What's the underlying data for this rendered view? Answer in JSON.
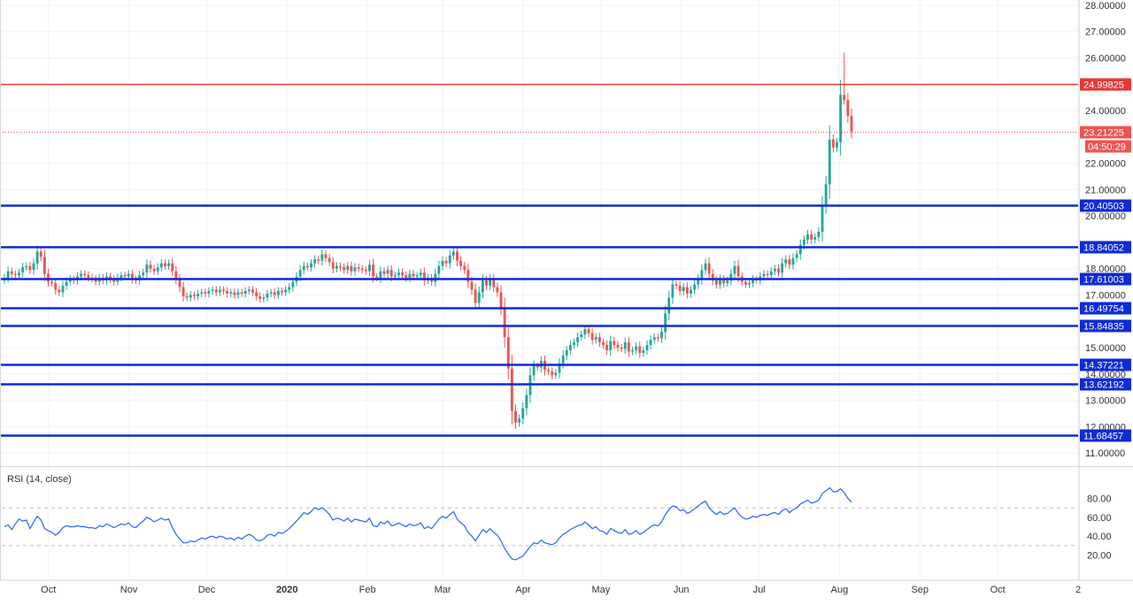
{
  "chart_data": [
    {
      "type": "candlestick",
      "indicator_title": "",
      "y_axis": {
        "range": [
          10.5,
          28.2
        ],
        "tick_labels": [
          "11.00000",
          "12.00000",
          "13.00000",
          "14.00000",
          "15.00000",
          "17.00000",
          "18.00000",
          "20.00000",
          "21.00000",
          "22.00000",
          "24.00000",
          "26.00000",
          "27.00000",
          "28.00000"
        ],
        "ticks": [
          11,
          12,
          13,
          14,
          15,
          17,
          18,
          20,
          21,
          22,
          24,
          26,
          27,
          28
        ]
      },
      "x_axis": {
        "tick_labels": [
          "Oct",
          "Nov",
          "Dec",
          "2020",
          "Feb",
          "Mar",
          "Apr",
          "May",
          "Jun",
          "Jul",
          "Aug",
          "Sep",
          "Oct",
          "2"
        ],
        "tick_dates": [
          "2019-10-01",
          "2019-11-01",
          "2019-12-01",
          "2020-01-01",
          "2020-02-01",
          "2020-03-01",
          "2020-04-01",
          "2020-05-01",
          "2020-06-01",
          "2020-07-01",
          "2020-08-01",
          "2020-09-01",
          "2020-10-01",
          "2020-11-01"
        ],
        "range": [
          "2019-09-13",
          "2020-11-01"
        ]
      },
      "horizontal_lines": [
        {
          "value": 24.99825,
          "label": "24.99825",
          "color": "#e53935",
          "style": "solid"
        },
        {
          "value": 20.40503,
          "label": "20.40503",
          "color": "#0d2bd6",
          "style": "solid"
        },
        {
          "value": 18.84052,
          "label": "18.84052",
          "color": "#0d2bd6",
          "style": "solid"
        },
        {
          "value": 17.61003,
          "label": "17.61003",
          "color": "#0d2bd6",
          "style": "solid"
        },
        {
          "value": 16.49754,
          "label": "16.49754",
          "color": "#0d2bd6",
          "style": "solid"
        },
        {
          "value": 15.84835,
          "label": "15.84835",
          "color": "#0d2bd6",
          "style": "solid"
        },
        {
          "value": 14.37221,
          "label": "14.37221",
          "color": "#0d2bd6",
          "style": "solid"
        },
        {
          "value": 13.62192,
          "label": "13.62192",
          "color": "#0d2bd6",
          "style": "solid"
        },
        {
          "value": 11.68457,
          "label": "11.68457",
          "color": "#0d2bd6",
          "style": "solid"
        }
      ],
      "last_price": {
        "value": 23.21225,
        "label": "23.21225",
        "countdown": "04:50:29",
        "color": "#ef5350"
      },
      "colors": {
        "up": "#26a69a",
        "down": "#ef5350"
      },
      "closes": [
        17.65,
        17.9,
        17.8,
        17.75,
        17.85,
        18.05,
        18.1,
        17.95,
        18.2,
        18.65,
        18.45,
        17.8,
        17.5,
        17.45,
        17.2,
        17.1,
        17.35,
        17.5,
        17.6,
        17.55,
        17.7,
        17.8,
        17.75,
        17.65,
        17.6,
        17.5,
        17.65,
        17.55,
        17.7,
        17.6,
        17.5,
        17.65,
        17.75,
        17.7,
        17.8,
        17.6,
        17.55,
        17.75,
        17.85,
        18.15,
        18.0,
        17.9,
        18.05,
        18.2,
        18.1,
        18.2,
        17.9,
        17.6,
        17.3,
        16.95,
        16.9,
        17.0,
        16.95,
        17.05,
        17.1,
        17.05,
        17.15,
        17.2,
        17.1,
        17.2,
        17.15,
        17.05,
        17.1,
        17.0,
        17.1,
        17.05,
        17.15,
        17.2,
        17.1,
        16.95,
        16.85,
        16.9,
        17.05,
        17.1,
        17.0,
        17.15,
        17.1,
        17.2,
        17.3,
        17.5,
        17.7,
        17.95,
        18.1,
        18.05,
        18.2,
        18.35,
        18.3,
        18.55,
        18.4,
        18.25,
        18.0,
        18.1,
        18.05,
        17.95,
        18.1,
        17.9,
        18.05,
        18.0,
        17.95,
        17.9,
        18.15,
        17.7,
        17.65,
        17.9,
        17.8,
        17.95,
        17.7,
        17.75,
        17.85,
        17.75,
        17.65,
        17.8,
        17.7,
        17.75,
        17.85,
        17.55,
        17.65,
        17.5,
        17.8,
        18.1,
        18.3,
        18.2,
        18.5,
        18.65,
        18.3,
        18.1,
        17.95,
        17.5,
        17.2,
        16.7,
        17.1,
        17.55,
        17.35,
        17.6,
        17.3,
        17.1,
        16.5,
        15.4,
        14.2,
        12.6,
        12.15,
        12.3,
        12.7,
        13.2,
        13.95,
        14.3,
        14.25,
        14.5,
        14.15,
        14.1,
        13.95,
        14.05,
        14.4,
        14.7,
        14.9,
        15.1,
        15.2,
        15.4,
        15.5,
        15.7,
        15.55,
        15.3,
        15.4,
        15.2,
        15.1,
        14.9,
        15.25,
        15.1,
        15.0,
        14.95,
        15.2,
        14.85,
        14.9,
        15.05,
        14.8,
        14.9,
        15.1,
        15.3,
        15.4,
        15.35,
        15.6,
        16.3,
        16.9,
        17.4,
        17.35,
        17.15,
        17.3,
        17.05,
        17.2,
        17.4,
        17.6,
        17.95,
        18.2,
        17.8,
        17.55,
        17.4,
        17.6,
        17.45,
        17.55,
        17.8,
        18.1,
        17.7,
        17.5,
        17.4,
        17.45,
        17.6,
        17.55,
        17.7,
        17.8,
        17.75,
        17.9,
        18.0,
        17.85,
        18.2,
        18.35,
        18.15,
        18.4,
        18.55,
        18.9,
        19.1,
        19.3,
        19.1,
        19.2,
        19.4,
        20.4,
        21.2,
        22.9,
        22.6,
        22.8,
        24.6,
        24.4,
        23.8,
        23.21
      ],
      "rsi": {
        "title": "RSI (14, close)",
        "range": [
          0,
          100
        ],
        "bands": [
          70,
          30
        ],
        "tick_labels": [
          "80.00",
          "60.00",
          "40.00",
          "20.00"
        ],
        "ticks": [
          80,
          60,
          40,
          20
        ],
        "color": "#2962ff",
        "values": [
          50,
          52,
          47,
          53,
          58,
          56,
          57,
          48,
          55,
          61,
          57,
          48,
          46,
          44,
          41,
          44,
          49,
          51,
          50,
          50,
          51,
          50,
          50,
          49,
          49,
          48,
          51,
          50,
          53,
          51,
          49,
          51,
          53,
          52,
          54,
          50,
          49,
          53,
          56,
          60,
          58,
          55,
          57,
          59,
          57,
          58,
          49,
          42,
          37,
          33,
          33,
          35,
          34,
          36,
          38,
          37,
          39,
          40,
          38,
          40,
          39,
          37,
          38,
          36,
          39,
          37,
          40,
          42,
          40,
          36,
          35,
          37,
          41,
          42,
          40,
          44,
          43,
          45,
          48,
          52,
          56,
          60,
          65,
          63,
          66,
          70,
          68,
          70,
          67,
          63,
          57,
          59,
          58,
          56,
          59,
          55,
          58,
          57,
          56,
          55,
          59,
          51,
          50,
          55,
          53,
          56,
          51,
          52,
          54,
          52,
          50,
          53,
          51,
          52,
          54,
          48,
          50,
          48,
          53,
          58,
          61,
          59,
          63,
          66,
          58,
          54,
          51,
          44,
          40,
          35,
          41,
          47,
          44,
          48,
          44,
          41,
          35,
          27,
          21,
          16,
          15,
          17,
          19,
          24,
          29,
          33,
          32,
          36,
          33,
          32,
          31,
          33,
          38,
          42,
          44,
          47,
          49,
          51,
          52,
          55,
          52,
          48,
          50,
          46,
          45,
          42,
          48,
          46,
          44,
          43,
          47,
          42,
          43,
          46,
          42,
          44,
          47,
          50,
          52,
          51,
          55,
          63,
          68,
          72,
          71,
          67,
          68,
          64,
          66,
          69,
          72,
          75,
          77,
          70,
          66,
          63,
          66,
          63,
          64,
          67,
          70,
          64,
          60,
          58,
          59,
          61,
          60,
          62,
          63,
          62,
          64,
          65,
          63,
          67,
          69,
          65,
          68,
          70,
          74,
          76,
          78,
          75,
          76,
          78,
          85,
          88,
          91,
          87,
          87,
          90,
          86,
          80,
          76
        ]
      }
    }
  ]
}
